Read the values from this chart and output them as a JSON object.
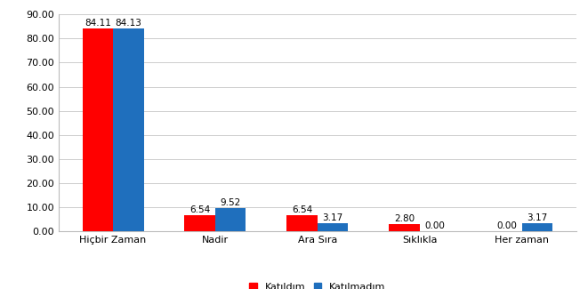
{
  "categories": [
    "Hiçbir Zaman",
    "Nadir",
    "Ara Sıra",
    "Sıklıkla",
    "Her zaman"
  ],
  "katildim": [
    84.11,
    6.54,
    6.54,
    2.8,
    0.0
  ],
  "katilmadim": [
    84.13,
    9.52,
    3.17,
    0.0,
    3.17
  ],
  "katildim_color": "#ff0000",
  "katilmadim_color": "#1f6fbd",
  "ylim": [
    0,
    90
  ],
  "yticks": [
    0.0,
    10.0,
    20.0,
    30.0,
    40.0,
    50.0,
    60.0,
    70.0,
    80.0,
    90.0
  ],
  "bar_width": 0.3,
  "legend_katildim": "Katıldım",
  "legend_katilmadim": "Katılmadım",
  "label_fontsize": 7.5,
  "tick_fontsize": 8,
  "legend_fontsize": 8,
  "background_color": "#ffffff",
  "grid_color": "#cccccc"
}
